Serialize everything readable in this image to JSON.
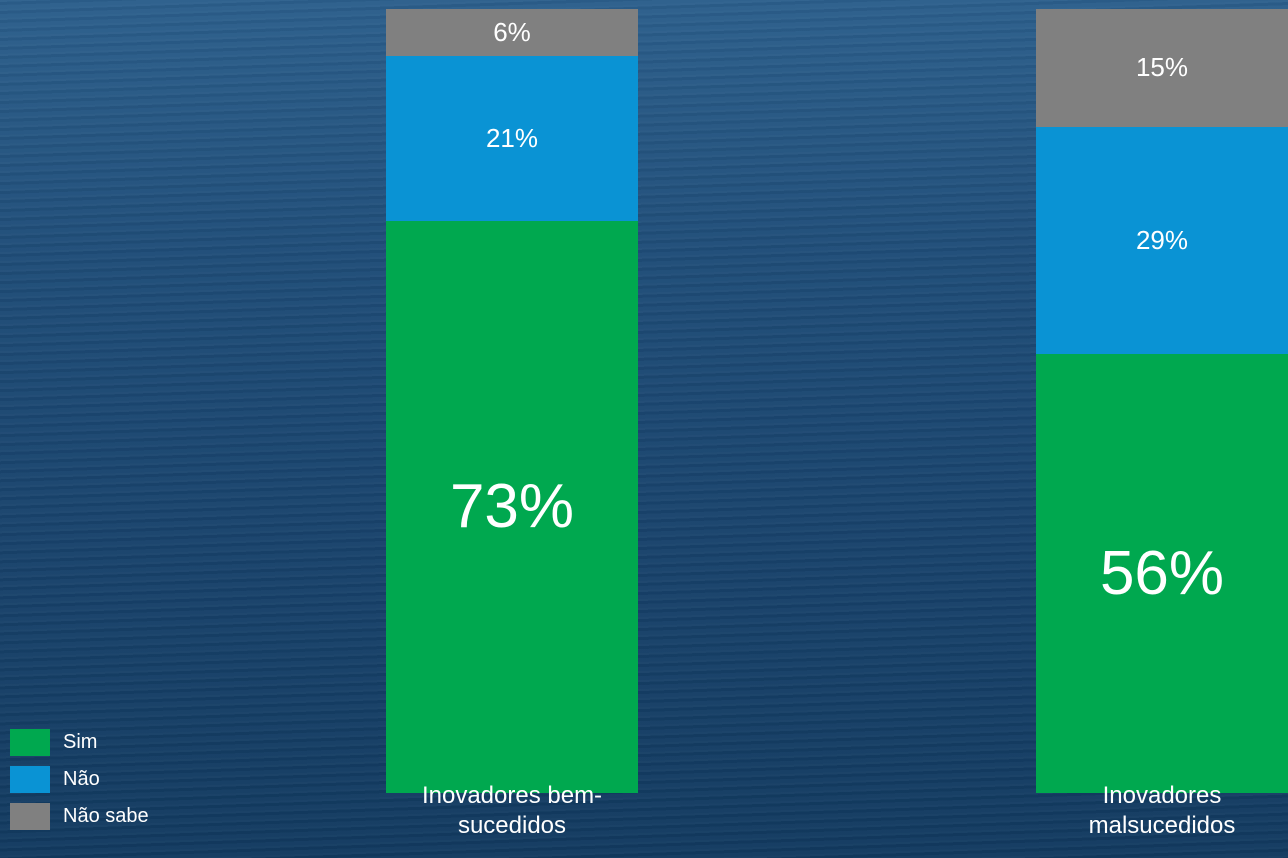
{
  "chart_data": {
    "type": "stacked_bar",
    "categories": [
      "Inovadores bem-sucedidos",
      "Inovadores malsucedidos"
    ],
    "series": [
      {
        "name": "Sim",
        "color": "#00a84f",
        "values": [
          73,
          56
        ],
        "value_labels": [
          "73%",
          "56%"
        ]
      },
      {
        "name": "Não",
        "color": "#0a93d4",
        "values": [
          21,
          29
        ],
        "value_labels": [
          "21%",
          "29%"
        ]
      },
      {
        "name": "Não sabe",
        "color": "#808080",
        "values": [
          6,
          15
        ],
        "value_labels": [
          "6%",
          "15%"
        ]
      }
    ]
  }
}
